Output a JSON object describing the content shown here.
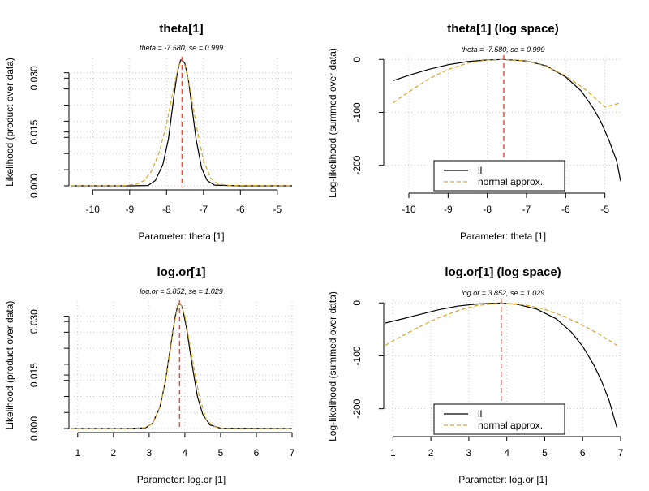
{
  "colors": {
    "ll": "#000000",
    "normal": "#DAA520",
    "estimate": "#E74C3C",
    "grid": "#C8C8C8"
  },
  "chart_data": [
    {
      "id": "theta-lik",
      "type": "line",
      "title": "theta[1]",
      "subtitle": "theta = -7.580, se = 0.999",
      "xlabel": "Parameter: theta [1]",
      "ylabel": "Likelihood (product over data)",
      "xlim": [
        -10.6,
        -4.6
      ],
      "ylim": [
        0,
        0.0355
      ],
      "x_ticks": [
        -10,
        -9,
        -8,
        -7,
        -6,
        -5
      ],
      "x_tick_labels": [
        "-10",
        "-9",
        "-8",
        "-7",
        "-6",
        "-5"
      ],
      "y_ticks": [
        0,
        0.015,
        0.03
      ],
      "y_tick_labels": [
        "0.000",
        "0.015",
        "0.030"
      ],
      "y_minor_ticks": [
        0.0045,
        0.009,
        0.0135,
        0.018,
        0.0225,
        0.027,
        0.0315
      ],
      "grid": true,
      "estimate": -7.58,
      "series": [
        {
          "key": "ll",
          "x": [
            -10.6,
            -9.0,
            -8.5,
            -8.3,
            -8.1,
            -7.95,
            -7.8,
            -7.7,
            -7.62,
            -7.58,
            -7.5,
            -7.4,
            -7.3,
            -7.2,
            -7.05,
            -6.9,
            -6.7,
            -6.0,
            -4.6
          ],
          "y": [
            0,
            0,
            0.0001,
            0.0015,
            0.006,
            0.013,
            0.025,
            0.032,
            0.035,
            0.0352,
            0.034,
            0.029,
            0.021,
            0.013,
            0.005,
            0.0015,
            0.0002,
            0,
            0
          ]
        },
        {
          "key": "normal",
          "x": [
            -10.6,
            -9.2,
            -8.8,
            -8.6,
            -8.4,
            -8.2,
            -8.0,
            -7.8,
            -7.68,
            -7.58,
            -7.48,
            -7.36,
            -7.2,
            -7.0,
            -6.8,
            -6.6,
            -6.3,
            -4.6
          ],
          "y": [
            0,
            0,
            0.0005,
            0.0015,
            0.0042,
            0.0093,
            0.0172,
            0.0276,
            0.0331,
            0.0352,
            0.0331,
            0.027,
            0.0172,
            0.0071,
            0.0021,
            0.0005,
            0.0001,
            0
          ]
        }
      ]
    },
    {
      "id": "theta-log",
      "type": "line",
      "title": "theta[1] (log space)",
      "subtitle": "theta = -7.580, se = 0.999",
      "xlabel": "Parameter: theta [1]",
      "ylabel": "Log-likelihood (summed over data)",
      "xlim": [
        -10.6,
        -4.6
      ],
      "ylim": [
        -245,
        5
      ],
      "x_ticks": [
        -10,
        -9,
        -8,
        -7,
        -6,
        -5
      ],
      "x_tick_labels": [
        "-10",
        "-9",
        "-8",
        "-7",
        "-6",
        "-5"
      ],
      "y_ticks": [
        -200,
        -100,
        0
      ],
      "y_tick_labels": [
        "-200",
        "-100",
        "0"
      ],
      "grid": true,
      "estimate": -7.58,
      "legend": {
        "position": "bottom-center",
        "entries": [
          {
            "key": "ll",
            "label": "ll"
          },
          {
            "key": "normal",
            "label": "normal approx."
          }
        ]
      },
      "series": [
        {
          "key": "ll",
          "x": [
            -10.4,
            -10.0,
            -9.5,
            -9.0,
            -8.5,
            -8.0,
            -7.58,
            -7.0,
            -6.5,
            -6.0,
            -5.6,
            -5.3,
            -5.1,
            -4.9,
            -4.7,
            -4.6
          ],
          "y": [
            -40,
            -30,
            -19,
            -10,
            -4,
            -1,
            0,
            -3,
            -12,
            -33,
            -60,
            -92,
            -118,
            -152,
            -192,
            -230
          ]
        },
        {
          "key": "normal",
          "x": [
            -10.4,
            -10.0,
            -9.5,
            -9.0,
            -8.5,
            -8.0,
            -7.58,
            -7.0,
            -6.5,
            -6.0,
            -5.5,
            -5.0,
            -4.6
          ],
          "y": [
            -82,
            -61,
            -37,
            -19,
            -7,
            -1,
            0,
            -3,
            -13,
            -31,
            -57,
            -90,
            -82
          ]
        }
      ]
    },
    {
      "id": "logor-lik",
      "type": "line",
      "title": "log.or[1]",
      "subtitle": "log.or = 3.852, se = 1.029",
      "xlabel": "Parameter: log.or [1]",
      "ylabel": "Likelihood (product over data)",
      "xlim": [
        0.8,
        7.0
      ],
      "ylim": [
        0,
        0.0355
      ],
      "x_ticks": [
        1,
        2,
        3,
        4,
        5,
        6,
        7
      ],
      "x_tick_labels": [
        "1",
        "2",
        "3",
        "4",
        "5",
        "6",
        "7"
      ],
      "y_ticks": [
        0,
        0.015,
        0.03
      ],
      "y_tick_labels": [
        "0.000",
        "0.015",
        "0.030"
      ],
      "y_minor_ticks": [
        0.0045,
        0.009,
        0.0135,
        0.018,
        0.0225,
        0.027,
        0.0315
      ],
      "grid": true,
      "estimate": 3.852,
      "series": [
        {
          "key": "ll",
          "x": [
            0.8,
            2.4,
            2.9,
            3.1,
            3.3,
            3.45,
            3.6,
            3.72,
            3.8,
            3.852,
            3.93,
            4.05,
            4.2,
            4.35,
            4.5,
            4.7,
            5.0,
            7.0
          ],
          "y": [
            0,
            0,
            0.0002,
            0.0015,
            0.006,
            0.013,
            0.023,
            0.031,
            0.0345,
            0.0352,
            0.034,
            0.028,
            0.018,
            0.009,
            0.004,
            0.001,
            0.0001,
            0
          ]
        },
        {
          "key": "normal",
          "x": [
            0.8,
            2.6,
            2.9,
            3.1,
            3.3,
            3.5,
            3.7,
            3.8,
            3.852,
            3.9,
            4.0,
            4.2,
            4.4,
            4.6,
            4.8,
            5.1,
            7.0
          ],
          "y": [
            0,
            0,
            0.0003,
            0.0015,
            0.006,
            0.0158,
            0.0291,
            0.0343,
            0.0352,
            0.0345,
            0.0316,
            0.0201,
            0.0091,
            0.0025,
            0.0006,
            0,
            0
          ]
        }
      ]
    },
    {
      "id": "logor-log",
      "type": "line",
      "title": "log.or[1] (log space)",
      "subtitle": "log.or = 3.852, se = 1.029",
      "xlabel": "Parameter: log.or [1]",
      "ylabel": "Log-likelihood (summed over data)",
      "xlim": [
        0.8,
        7.0
      ],
      "ylim": [
        -245,
        5
      ],
      "x_ticks": [
        1,
        2,
        3,
        4,
        5,
        6,
        7
      ],
      "x_tick_labels": [
        "1",
        "2",
        "3",
        "4",
        "5",
        "6",
        "7"
      ],
      "y_ticks": [
        -200,
        -100,
        0
      ],
      "y_tick_labels": [
        "-200",
        "-100",
        "0"
      ],
      "grid": true,
      "estimate": 3.852,
      "legend": {
        "position": "bottom-center",
        "entries": [
          {
            "key": "ll",
            "label": "ll"
          },
          {
            "key": "normal",
            "label": "normal approx."
          }
        ]
      },
      "series": [
        {
          "key": "ll",
          "x": [
            0.8,
            1.2,
            1.7,
            2.2,
            2.7,
            3.2,
            3.852,
            4.3,
            4.8,
            5.3,
            5.7,
            6.0,
            6.3,
            6.5,
            6.7,
            6.9
          ],
          "y": [
            -38,
            -31,
            -22,
            -13,
            -6,
            -2,
            0,
            -3,
            -12,
            -30,
            -55,
            -82,
            -118,
            -148,
            -185,
            -235
          ]
        },
        {
          "key": "normal",
          "x": [
            0.8,
            1.2,
            1.7,
            2.2,
            2.7,
            3.2,
            3.852,
            4.5,
            5.0,
            5.5,
            6.0,
            6.5,
            6.9
          ],
          "y": [
            -80,
            -64,
            -45,
            -28,
            -15,
            -5,
            0,
            -4,
            -12,
            -25,
            -42,
            -62,
            -80
          ]
        }
      ]
    }
  ]
}
